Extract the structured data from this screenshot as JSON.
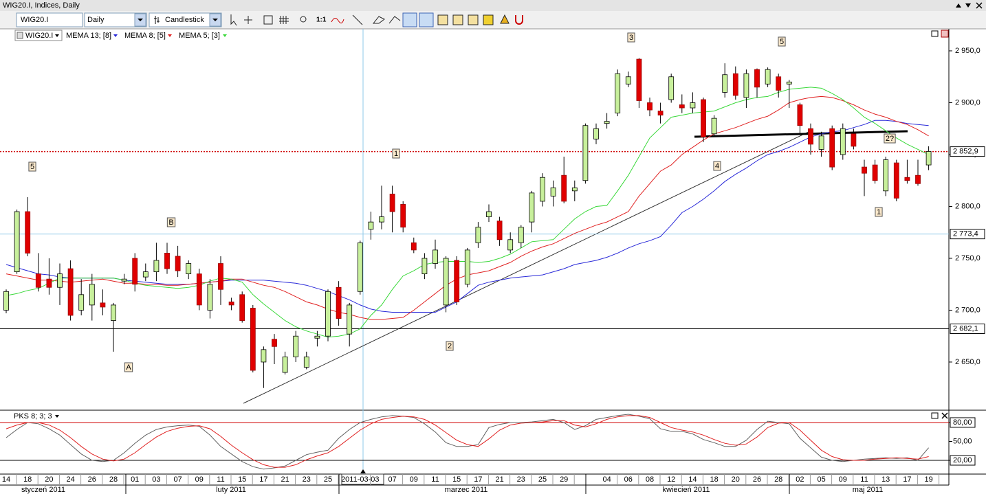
{
  "window_title": "WIG20.I, Indices, Daily",
  "toolbar": {
    "symbol": "WIG20.I",
    "interval": "Daily",
    "chart_style": "Candlestick",
    "zoom": "1:1"
  },
  "chart_data": [
    {
      "type": "candlestick",
      "symbol": "WIG20.I",
      "categories": [
        "14",
        null,
        "18",
        null,
        "20",
        null,
        "24",
        null,
        "26",
        null,
        "28",
        null,
        "01",
        null,
        "03",
        null,
        "07",
        null,
        "09",
        null,
        "11",
        null,
        "15",
        null,
        "17",
        null,
        "21",
        null,
        "23",
        null,
        "25",
        null,
        null,
        "2011-03-03",
        null,
        null,
        "07",
        null,
        "09",
        null,
        "11",
        null,
        "15",
        null,
        "17",
        null,
        "21",
        null,
        "23",
        null,
        "25",
        null,
        "29",
        null,
        null,
        null,
        "04",
        null,
        "06",
        null,
        "08",
        null,
        "12",
        null,
        "14",
        null,
        "18",
        null,
        "20",
        null,
        "26",
        null,
        "28",
        null,
        "02",
        null,
        "05",
        null,
        "09",
        null,
        "11",
        null,
        "13",
        null,
        "17",
        null,
        "19"
      ],
      "open": [
        2700,
        2737,
        2795,
        2735,
        2730,
        2722,
        2740,
        2700,
        2705,
        2707,
        2690,
        2728,
        2750,
        2732,
        2737,
        2755,
        2752,
        2735,
        2735,
        2700,
        2745,
        2708,
        2715,
        2702,
        2650,
        2672,
        2640,
        2655,
        2645,
        2673,
        2675,
        2722,
        2677,
        2718,
        2778,
        2785,
        2812,
        2802,
        2765,
        2735,
        2745,
        2705,
        2748,
        2725,
        2765,
        2790,
        2786,
        2758,
        2765,
        2785,
        2805,
        2810,
        2830,
        2815,
        2825,
        2865,
        2880,
        2890,
        2918,
        2942,
        2900,
        2892,
        2903,
        2898,
        2895,
        2903,
        2870,
        2910,
        2928,
        2905,
        2932,
        2918,
        2925,
        2918,
        2898,
        2875,
        2855,
        2875,
        2850,
        2870,
        2838,
        2840,
        2815,
        2842,
        2828,
        2830,
        2840
      ],
      "high": [
        2720,
        2797,
        2809,
        2755,
        2750,
        2745,
        2748,
        2730,
        2735,
        2720,
        2707,
        2735,
        2755,
        2745,
        2765,
        2765,
        2762,
        2748,
        2740,
        2730,
        2752,
        2712,
        2718,
        2705,
        2665,
        2677,
        2660,
        2680,
        2660,
        2680,
        2720,
        2728,
        2707,
        2767,
        2795,
        2820,
        2820,
        2805,
        2770,
        2755,
        2768,
        2752,
        2752,
        2760,
        2785,
        2802,
        2790,
        2775,
        2782,
        2815,
        2832,
        2825,
        2848,
        2825,
        2880,
        2880,
        2890,
        2932,
        2930,
        2943,
        2905,
        2900,
        2928,
        2908,
        2910,
        2905,
        2888,
        2938,
        2935,
        2932,
        2933,
        2934,
        2928,
        2922,
        2900,
        2880,
        2872,
        2878,
        2880,
        2875,
        2845,
        2845,
        2848,
        2845,
        2845,
        2845,
        2858
      ],
      "low": [
        2697,
        2735,
        2752,
        2718,
        2715,
        2705,
        2690,
        2695,
        2690,
        2695,
        2660,
        2725,
        2718,
        2728,
        2728,
        2735,
        2732,
        2730,
        2700,
        2692,
        2705,
        2700,
        2688,
        2640,
        2625,
        2648,
        2638,
        2650,
        2643,
        2665,
        2670,
        2685,
        2665,
        2715,
        2768,
        2778,
        2775,
        2775,
        2755,
        2730,
        2740,
        2698,
        2705,
        2722,
        2760,
        2785,
        2762,
        2755,
        2760,
        2775,
        2800,
        2800,
        2803,
        2805,
        2822,
        2860,
        2875,
        2887,
        2915,
        2895,
        2887,
        2880,
        2900,
        2890,
        2890,
        2862,
        2868,
        2905,
        2903,
        2895,
        2905,
        2915,
        2905,
        2895,
        2870,
        2850,
        2848,
        2835,
        2845,
        2855,
        2810,
        2822,
        2810,
        2805,
        2822,
        2820,
        2835
      ],
      "close": [
        2718,
        2795,
        2755,
        2722,
        2722,
        2735,
        2695,
        2715,
        2725,
        2703,
        2705,
        2730,
        2725,
        2737,
        2748,
        2740,
        2738,
        2745,
        2705,
        2725,
        2720,
        2705,
        2690,
        2642,
        2662,
        2665,
        2655,
        2675,
        2655,
        2675,
        2718,
        2692,
        2705,
        2765,
        2785,
        2790,
        2795,
        2780,
        2758,
        2750,
        2758,
        2750,
        2708,
        2758,
        2780,
        2795,
        2768,
        2768,
        2780,
        2813,
        2828,
        2818,
        2805,
        2818,
        2878,
        2875,
        2882,
        2928,
        2925,
        2902,
        2893,
        2888,
        2925,
        2895,
        2900,
        2867,
        2885,
        2927,
        2907,
        2928,
        2915,
        2932,
        2912,
        2920,
        2878,
        2860,
        2868,
        2838,
        2875,
        2858,
        2832,
        2825,
        2845,
        2808,
        2825,
        2822,
        2853
      ],
      "up_color": "#c8f09c",
      "down_color": "#e00000",
      "series": [
        {
          "name": "MEMA 13; [8]",
          "color": "#2828d8",
          "values": [
            2744,
            2741,
            2738,
            2735,
            2734,
            2732,
            2731,
            2731,
            2731,
            2731,
            2731,
            2729,
            2728,
            2727,
            2726,
            2725,
            2725,
            2725,
            2726,
            2727,
            2728,
            2729,
            2729,
            2729,
            2729,
            2728,
            2727,
            2726,
            2724,
            2721,
            2718,
            2714,
            2710,
            2705,
            2701,
            2699,
            2698,
            2698,
            2698,
            2698,
            2698,
            2703,
            2708,
            2716,
            2724,
            2727,
            2729,
            2731,
            2732,
            2733,
            2734,
            2737,
            2740,
            2744,
            2746,
            2748,
            2751,
            2755,
            2760,
            2764,
            2767,
            2771,
            2782,
            2794,
            2800,
            2807,
            2815,
            2824,
            2831,
            2837,
            2844,
            2850,
            2853,
            2857,
            2862,
            2867,
            2870,
            2872,
            2873,
            2876,
            2879,
            2883,
            2883,
            2882,
            2880,
            2879,
            2878
          ]
        },
        {
          "name": "MEMA 8; [5]",
          "color": "#e02020",
          "values": [
            2735,
            2733,
            2731,
            2729,
            2729,
            2728,
            2727,
            2728,
            2729,
            2730,
            2728,
            2726,
            2726,
            2725,
            2725,
            2724,
            2724,
            2725,
            2726,
            2727,
            2728,
            2730,
            2730,
            2727,
            2724,
            2722,
            2718,
            2713,
            2708,
            2705,
            2701,
            2698,
            2696,
            2693,
            2691,
            2691,
            2692,
            2693,
            2700,
            2708,
            2716,
            2724,
            2730,
            2734,
            2736,
            2738,
            2742,
            2746,
            2752,
            2757,
            2761,
            2764,
            2769,
            2774,
            2778,
            2782,
            2785,
            2790,
            2795,
            2810,
            2822,
            2834,
            2840,
            2850,
            2857,
            2864,
            2870,
            2873,
            2876,
            2880,
            2884,
            2887,
            2893,
            2900,
            2903,
            2905,
            2906,
            2905,
            2902,
            2898,
            2893,
            2889,
            2886,
            2882,
            2879,
            2874,
            2868
          ]
        },
        {
          "name": "MEMA 5; [3]",
          "color": "#38d838",
          "values": [
            2714,
            2716,
            2719,
            2721,
            2726,
            2731,
            2731,
            2731,
            2731,
            2731,
            2731,
            2729,
            2726,
            2724,
            2723,
            2722,
            2721,
            2722,
            2724,
            2728,
            2731,
            2730,
            2727,
            2715,
            2706,
            2698,
            2690,
            2684,
            2680,
            2677,
            2674,
            2675,
            2677,
            2682,
            2695,
            2705,
            2720,
            2733,
            2738,
            2744,
            2746,
            2747,
            2747,
            2747,
            2746,
            2747,
            2750,
            2754,
            2760,
            2766,
            2767,
            2768,
            2778,
            2788,
            2795,
            2800,
            2801,
            2815,
            2830,
            2848,
            2866,
            2876,
            2886,
            2888,
            2890,
            2891,
            2892,
            2896,
            2900,
            2903,
            2905,
            2906,
            2910,
            2913,
            2914,
            2915,
            2914,
            2909,
            2903,
            2895,
            2886,
            2880,
            2873,
            2866,
            2860,
            2855,
            2850
          ]
        }
      ],
      "ylim": [
        2603.6,
        2971.2
      ],
      "yticks": [
        {
          "value": 2650,
          "label": "2 650,0"
        },
        {
          "value": 2700,
          "label": "2 700,0"
        },
        {
          "value": 2750,
          "label": "2 750,0"
        },
        {
          "value": 2800,
          "label": "2 800,0"
        },
        {
          "value": 2850,
          "label": "2 850,0"
        },
        {
          "value": 2900,
          "label": "2 900,0"
        },
        {
          "value": 2950,
          "label": "2 950,0"
        }
      ],
      "levels": [
        {
          "value": 2852.9,
          "label": "2 852,9",
          "color": "#d00000",
          "style": "dotted"
        },
        {
          "value": 2773.4,
          "label": "2 773,4",
          "color": "#8ec8e8",
          "style": "solid"
        },
        {
          "value": 2682.1,
          "label": "2 682,1",
          "color": "#000000",
          "style": "solid"
        }
      ],
      "annotations": [
        "5",
        "B",
        "A",
        "1",
        "2",
        "3",
        "4",
        "5",
        "1",
        "2?"
      ],
      "months": [
        "styczeń 2011",
        "luty 2011",
        "marzec 2011",
        "kwiecień 2011",
        "maj 2011"
      ]
    },
    {
      "type": "line",
      "title": "PKS 8; 3; 3",
      "series": [
        {
          "color": "#606060",
          "values": [
            56,
            69,
            80,
            78,
            70,
            60,
            45,
            30,
            20,
            18,
            20,
            32,
            47,
            60,
            69,
            73,
            75,
            76,
            74,
            60,
            42,
            30,
            18,
            10,
            6,
            8,
            11,
            20,
            29,
            33,
            36,
            55,
            69,
            80,
            85,
            89,
            91,
            90,
            88,
            78,
            65,
            48,
            42,
            42,
            45,
            72,
            77,
            80,
            80,
            81,
            83,
            85,
            80,
            69,
            75,
            85,
            88,
            91,
            93,
            90,
            86,
            70,
            66,
            66,
            62,
            53,
            48,
            42,
            42,
            52,
            69,
            82,
            80,
            78,
            55,
            40,
            25,
            20,
            18,
            20,
            22,
            23,
            24,
            23,
            24,
            20,
            40
          ]
        },
        {
          "color": "#e02020",
          "values": [
            70,
            76,
            80,
            80,
            76,
            68,
            56,
            42,
            30,
            22,
            19,
            22,
            32,
            45,
            57,
            66,
            71,
            74,
            75,
            70,
            58,
            44,
            32,
            21,
            13,
            9,
            9,
            13,
            21,
            27,
            32,
            42,
            55,
            68,
            78,
            85,
            88,
            90,
            89,
            85,
            76,
            64,
            52,
            45,
            42,
            54,
            68,
            76,
            79,
            80,
            81,
            83,
            83,
            76,
            73,
            78,
            85,
            89,
            91,
            91,
            88,
            80,
            72,
            68,
            65,
            60,
            53,
            47,
            44,
            46,
            57,
            72,
            79,
            80,
            68,
            52,
            36,
            26,
            21,
            20,
            20,
            22,
            23,
            24,
            23,
            22,
            26
          ]
        }
      ],
      "ylim": [
        -1.8,
        98.5
      ],
      "yticks": [
        {
          "value": 20,
          "label": "20,00"
        },
        {
          "value": 50,
          "label": "50,00"
        },
        {
          "value": 80,
          "label": "80,00"
        }
      ],
      "levels": [
        {
          "value": 80,
          "color": "#d00000"
        },
        {
          "value": 20,
          "color": "#000000"
        }
      ]
    }
  ]
}
